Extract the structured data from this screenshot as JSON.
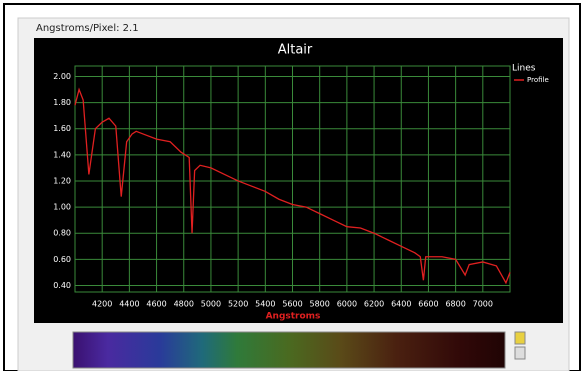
{
  "header": "Angstroms/Pixel: 2.1",
  "chart_data": {
    "type": "line",
    "title": "Altair",
    "x_label": "Angstroms",
    "legend_title": "Lines",
    "legend_position": "right",
    "grid": true,
    "xlim": [
      4000,
      7200
    ],
    "ylim": [
      0.35,
      2.08
    ],
    "xticks": [
      4200,
      4400,
      4600,
      4800,
      5000,
      5200,
      5400,
      5600,
      5800,
      6000,
      6200,
      6400,
      6600,
      6800,
      7000
    ],
    "yticks": [
      {
        "value": 0.4,
        "label": "0.40"
      },
      {
        "value": 0.6,
        "label": "0.60"
      },
      {
        "value": 0.8,
        "label": "0.80"
      },
      {
        "value": 1.0,
        "label": "1.00"
      },
      {
        "value": 1.2,
        "label": "1.20"
      },
      {
        "value": 1.4,
        "label": "1.40"
      },
      {
        "value": 1.6,
        "label": "1.60"
      },
      {
        "value": 1.8,
        "label": "1.80"
      },
      {
        "value": 2.0,
        "label": "2.00"
      }
    ],
    "x": [
      4000,
      4030,
      4060,
      4102,
      4150,
      4200,
      4250,
      4300,
      4340,
      4380,
      4420,
      4450,
      4500,
      4600,
      4700,
      4780,
      4840,
      4861,
      4880,
      4920,
      5000,
      5100,
      5200,
      5300,
      5400,
      5500,
      5600,
      5700,
      5800,
      5900,
      6000,
      6100,
      6200,
      6300,
      6400,
      6500,
      6540,
      6563,
      6580,
      6700,
      6800,
      6870,
      6900,
      7000,
      7100,
      7170,
      7200
    ],
    "series": [
      {
        "name": "Profile",
        "color": "#e02020",
        "values": [
          1.78,
          1.9,
          1.82,
          1.25,
          1.6,
          1.65,
          1.68,
          1.62,
          1.08,
          1.5,
          1.56,
          1.58,
          1.56,
          1.52,
          1.5,
          1.42,
          1.38,
          0.8,
          1.28,
          1.32,
          1.3,
          1.25,
          1.2,
          1.16,
          1.12,
          1.06,
          1.02,
          1.0,
          0.95,
          0.9,
          0.85,
          0.84,
          0.8,
          0.75,
          0.7,
          0.65,
          0.62,
          0.44,
          0.62,
          0.62,
          0.6,
          0.48,
          0.56,
          0.58,
          0.55,
          0.42,
          0.5
        ]
      }
    ]
  }
}
